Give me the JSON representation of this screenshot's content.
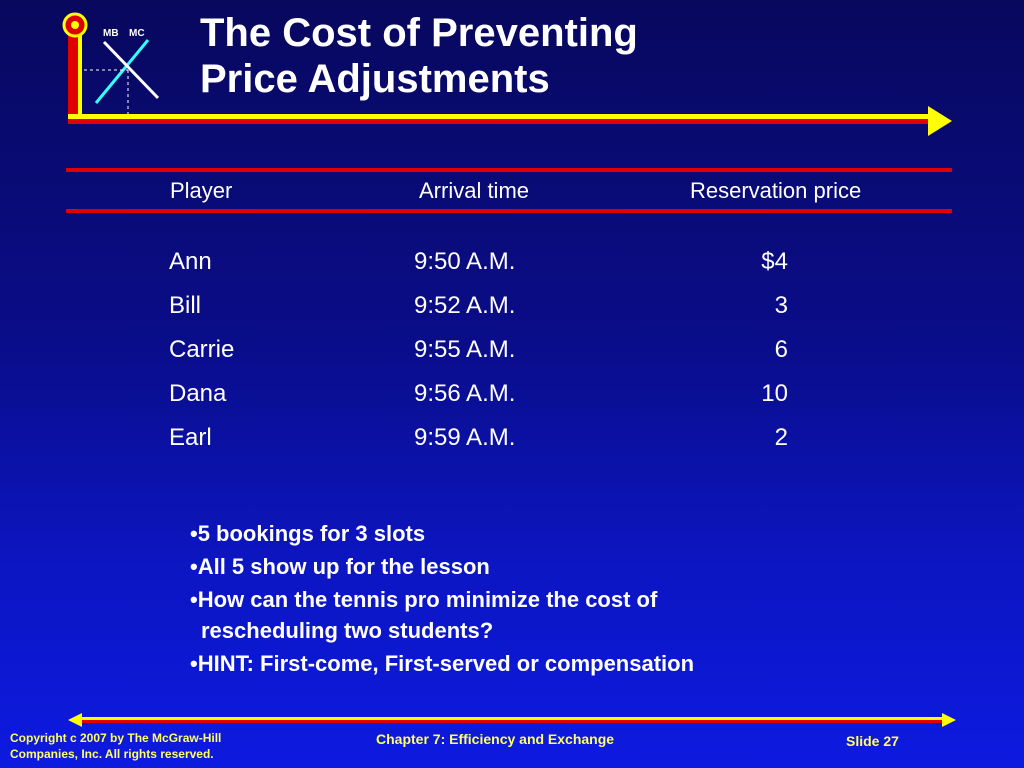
{
  "logo": {
    "label_left": "MB",
    "label_right": "MC"
  },
  "title": {
    "line1": "The Cost of Preventing",
    "line2": "Price Adjustments"
  },
  "table": {
    "headers": [
      "Player",
      "Arrival time",
      "Reservation price"
    ],
    "rows": [
      {
        "player": "Ann",
        "arrival": "9:50 A.M.",
        "price": "$4"
      },
      {
        "player": "Bill",
        "arrival": "9:52 A.M.",
        "price": "3"
      },
      {
        "player": "Carrie",
        "arrival": "9:55 A.M.",
        "price": "6"
      },
      {
        "player": "Dana",
        "arrival": "9:56 A.M.",
        "price": "10"
      },
      {
        "player": "Earl",
        "arrival": "9:59 A.M.",
        "price": "2"
      }
    ]
  },
  "bullets": [
    "•5 bookings for 3 slots",
    "•All 5 show up for the lesson",
    "•How can the tennis pro minimize the cost of rescheduling two students?",
    "•HINT: First-come, First-served or compensation"
  ],
  "footer": {
    "copyright_line1": "Copyright c 2007 by The McGraw-Hill",
    "copyright_line2": "Companies, Inc.  All rights reserved.",
    "chapter": "Chapter 7: Efficiency and Exchange",
    "slide": "Slide 27"
  },
  "colors": {
    "accent_yellow": "#ffff00",
    "accent_red": "#e00000",
    "logo_cyan": "#33ffff",
    "footer_text": "#ffff66"
  }
}
